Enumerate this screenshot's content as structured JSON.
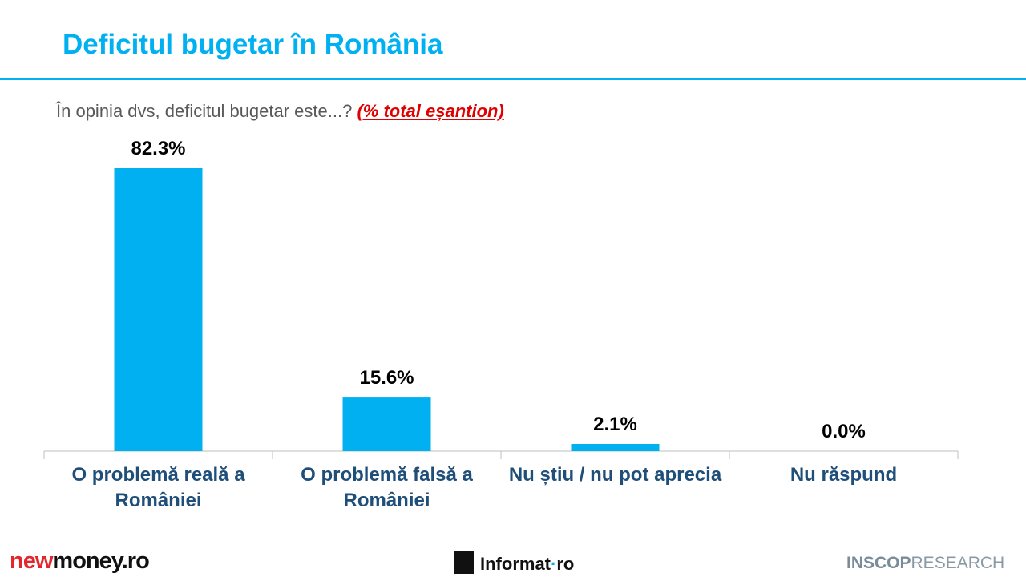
{
  "chart_data": {
    "type": "bar",
    "title": "Deficitul bugetar în România",
    "subtitle": "În opinia dvs, deficitul bugetar este...?",
    "subtitle_note": "(% total eșantion)",
    "categories": [
      "O problemă reală a României",
      "O problemă falsă a României",
      "Nu știu / nu pot aprecia",
      "Nu răspund"
    ],
    "values": [
      82.3,
      15.6,
      2.1,
      0.0
    ],
    "value_labels": [
      "82.3%",
      "15.6%",
      "2.1%",
      "0.0%"
    ],
    "color": "#00b0f0"
  },
  "footer": {
    "newmoney": [
      "new",
      "money.ro"
    ],
    "informat": [
      "Informat",
      "ro"
    ],
    "inscop": [
      "INSCOP",
      "RESEARCH"
    ]
  }
}
